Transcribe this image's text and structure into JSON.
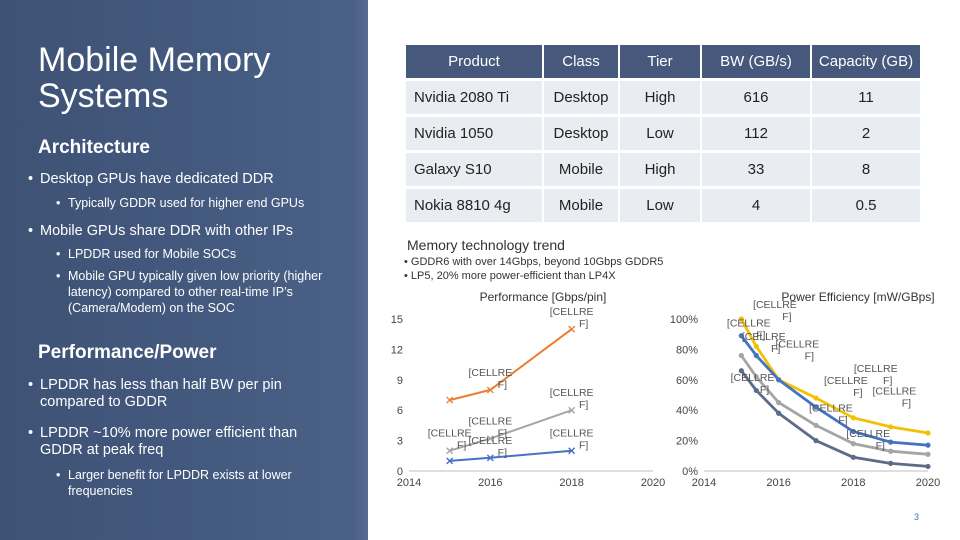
{
  "title": "Mobile Memory Systems",
  "architecture": {
    "heading": "Architecture",
    "bullets": [
      {
        "text": "Desktop GPUs have dedicated DDR",
        "sub": [
          "Typically GDDR used for higher end GPUs"
        ]
      },
      {
        "text": "Mobile GPUs share DDR with other IPs",
        "sub": [
          "LPDDR used for Mobile SOCs",
          "Mobile GPU typically given low priority (higher latency) compared to other real-time IP’s (Camera/Modem) on the SOC"
        ]
      }
    ]
  },
  "performance": {
    "heading": "Performance/Power",
    "bullets": [
      {
        "text": "LPDDR has less than half BW per pin compared to GDDR",
        "sub": []
      },
      {
        "text": "LPDDR ~10% more power efficient than GDDR at peak freq",
        "sub": [
          "Larger benefit for LPDDR exists at lower frequencies"
        ]
      }
    ]
  },
  "table": {
    "headers": [
      "Product",
      "Class",
      "Tier",
      "BW (GB/s)",
      "Capacity (GB)"
    ],
    "rows": [
      [
        "Nvidia 2080 Ti",
        "Desktop",
        "High",
        "616",
        "11"
      ],
      [
        "Nvidia 1050",
        "Desktop",
        "Low",
        "112",
        "2"
      ],
      [
        "Galaxy S10",
        "Mobile",
        "High",
        "33",
        "8"
      ],
      [
        "Nokia 8810 4g",
        "Mobile",
        "Low",
        "4",
        "0.5"
      ]
    ]
  },
  "trend": {
    "title": "Memory technology trend",
    "bullets": [
      "GDDR6 with over 14Gbps, beyond 10Gbps GDDR5",
      "LP5, 20% more power-efficient than LP4X"
    ]
  },
  "colors": {
    "panel": "#44597e",
    "orange": "#ed7d31",
    "gray": "#a5a5a5",
    "blue": "#4472c4",
    "yellow": "#f2c100",
    "dark": "#5b6b8a"
  },
  "chart_data": [
    {
      "type": "line",
      "title": "Performance [Gbps/pin]",
      "xlim": [
        2014,
        2020
      ],
      "ylim": [
        0,
        15
      ],
      "x_ticks": [
        "2014",
        "2016",
        "2018",
        "2020"
      ],
      "y_ticks": [
        "0",
        "3",
        "6",
        "9",
        "12",
        "15"
      ],
      "series": [
        {
          "color": "#ed7d31",
          "points": [
            [
              2015,
              7
            ],
            [
              2016,
              8
            ],
            [
              2018,
              14
            ]
          ]
        },
        {
          "color": "#a5a5a5",
          "points": [
            [
              2015,
              2
            ],
            [
              2016,
              3.2
            ],
            [
              2018,
              6
            ]
          ]
        },
        {
          "color": "#4472c4",
          "points": [
            [
              2015,
              1
            ],
            [
              2016,
              1.3
            ],
            [
              2018,
              2
            ]
          ]
        }
      ],
      "labels": [
        {
          "text": "[CELLRE F]",
          "x": 2018,
          "y": 14
        },
        {
          "text": "[CELLRE F]",
          "x": 2016,
          "y": 8
        },
        {
          "text": "[CELLRE F]",
          "x": 2018,
          "y": 6
        },
        {
          "text": "[CELLRE F]",
          "x": 2016,
          "y": 3.2
        },
        {
          "text": "[CELLRE F]",
          "x": 2015,
          "y": 2
        },
        {
          "text": "[CELLRE F]",
          "x": 2016,
          "y": 1.3
        },
        {
          "text": "[CELLRE F]",
          "x": 2018,
          "y": 2
        }
      ]
    },
    {
      "type": "line",
      "title": "Power Efficiency [mW/GBps]",
      "xlim": [
        2014,
        2020
      ],
      "ylim": [
        0,
        100
      ],
      "x_ticks": [
        "2014",
        "2016",
        "2018",
        "2020"
      ],
      "y_ticks": [
        "0%",
        "20%",
        "40%",
        "60%",
        "80%",
        "100%"
      ],
      "series": [
        {
          "color": "#f2c100",
          "points": [
            [
              2015,
              100
            ],
            [
              2015.4,
              82
            ],
            [
              2016,
              60
            ],
            [
              2017,
              48
            ],
            [
              2018,
              35
            ],
            [
              2019,
              29
            ],
            [
              2020,
              25
            ]
          ]
        },
        {
          "color": "#4472c4",
          "points": [
            [
              2015,
              89
            ],
            [
              2015.4,
              76
            ],
            [
              2016,
              60
            ],
            [
              2017,
              42
            ],
            [
              2018,
              26
            ],
            [
              2019,
              19
            ],
            [
              2020,
              17
            ]
          ]
        },
        {
          "color": "#a5a5a5",
          "points": [
            [
              2015,
              76
            ],
            [
              2015.4,
              62
            ],
            [
              2016,
              45
            ],
            [
              2017,
              30
            ],
            [
              2018,
              18
            ],
            [
              2019,
              13
            ],
            [
              2020,
              11
            ]
          ]
        },
        {
          "color": "#5b6b8a",
          "points": [
            [
              2015,
              66
            ],
            [
              2015.4,
              53
            ],
            [
              2016,
              38
            ],
            [
              2017,
              20
            ],
            [
              2018,
              9
            ],
            [
              2019,
              5
            ],
            [
              2020,
              3
            ]
          ]
        }
      ],
      "labels": [
        {
          "text": "[CELLRE F]",
          "x": 2015.9,
          "y": 98
        },
        {
          "text": "[CELLRE F]",
          "x": 2015.2,
          "y": 86
        },
        {
          "text": "[CELLRE F]",
          "x": 2015.6,
          "y": 77
        },
        {
          "text": "[CELLRE F]",
          "x": 2016.5,
          "y": 72
        },
        {
          "text": "[CELLRE F]",
          "x": 2018.6,
          "y": 56
        },
        {
          "text": "[CELLRE F]",
          "x": 2017.8,
          "y": 48
        },
        {
          "text": "[CELLRE F]",
          "x": 2015.3,
          "y": 50
        },
        {
          "text": "[CELLRE F]",
          "x": 2019.1,
          "y": 41
        },
        {
          "text": "[CELLRE F]",
          "x": 2017.4,
          "y": 30
        },
        {
          "text": "[CELLRE F]",
          "x": 2018.4,
          "y": 13
        }
      ]
    }
  ],
  "page_number": "3"
}
